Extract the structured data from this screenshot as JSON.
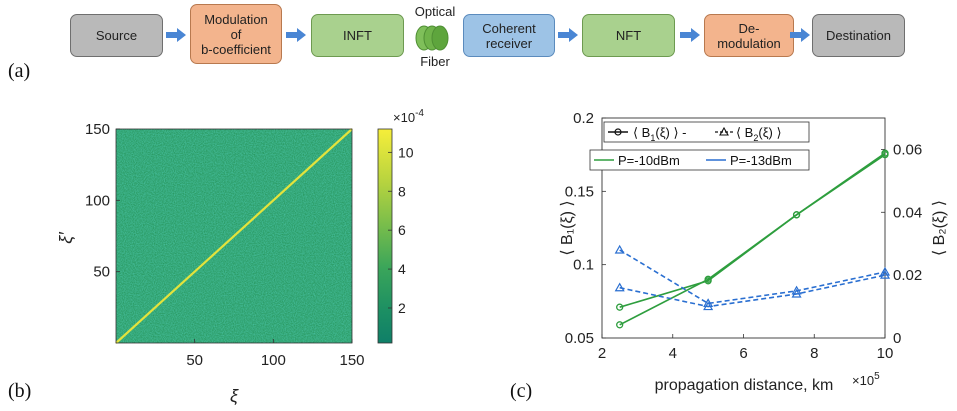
{
  "diagram": {
    "panel_label": "(a)",
    "blocks": [
      {
        "label": "Source",
        "color": "gray"
      },
      {
        "label": "Modulation\nof\nb-coefficient",
        "color": "orange"
      },
      {
        "label": "INFT",
        "color": "green"
      },
      {
        "label": "Coherent\nreceiver",
        "color": "blue"
      },
      {
        "label": "NFT",
        "color": "green"
      },
      {
        "label": "De-\nmodulation",
        "color": "orange"
      },
      {
        "label": "Destination",
        "color": "gray"
      }
    ],
    "fiber_label_top": "Optical",
    "fiber_label_bottom": "Fiber"
  },
  "heatmap": {
    "panel_label": "(b)",
    "x_ticks": [
      "50",
      "100",
      "150"
    ],
    "y_ticks": [
      "50",
      "100",
      "150"
    ],
    "xlabel": "ξ",
    "ylabel": "ξ′",
    "colorbar_ticks": [
      "2",
      "4",
      "6",
      "8",
      "10"
    ],
    "colorbar_exponent": "×10",
    "colorbar_exponent_power": "-4",
    "colors": {
      "low": "#138a6a",
      "mid": "#4aa657",
      "high": "#f3eb3c"
    }
  },
  "line_panel_label": "(c)",
  "chart_data": {
    "type": "line",
    "xlabel": "propagation distance, km",
    "x_exponent": "×10",
    "x_exponent_power": "5",
    "xlim": [
      2,
      10
    ],
    "x_ticks": [
      "2",
      "4",
      "6",
      "8",
      "10"
    ],
    "y_left_ticks": [
      "0.05",
      "0.1",
      "0.15",
      "0.2"
    ],
    "ylim_left": [
      0.05,
      0.2
    ],
    "y_right_ticks": [
      "0",
      "0.02",
      "0.04",
      "0.06"
    ],
    "ylim_right": [
      0,
      0.07
    ],
    "ylabel_left": "⟨ B₁(ξ) ⟩",
    "ylabel_right": "⟨ B₂(ξ) ⟩",
    "legend_markers": "⟨ B₁(ξ) ⟩ - ⟨ B₂(ξ) ⟩",
    "legend_markers_parts": {
      "b1": "⟨ B",
      "b1sub": "1",
      "b1end": "(ξ) ⟩ -",
      "b2": "⟨ B",
      "b2sub": "2",
      "b2end": "(ξ) ⟩"
    },
    "legend_power_1": "P=-10dBm",
    "legend_power_2": "P=-13dBm",
    "x": [
      2.5,
      5,
      7.5,
      10
    ],
    "series": [
      {
        "axis": "left",
        "style": "solid",
        "marker": "circle",
        "color": "#2e9e3e",
        "values": [
          0.071,
          0.089,
          0.134,
          0.176
        ]
      },
      {
        "axis": "left",
        "style": "solid",
        "marker": "circle",
        "color": "#2e9e3e",
        "values": [
          0.059,
          0.09,
          0.134,
          0.175
        ]
      },
      {
        "axis": "right",
        "style": "dashed",
        "marker": "triangle",
        "color": "#2a6fd1",
        "values": [
          0.028,
          0.011,
          0.015,
          0.021
        ]
      },
      {
        "axis": "right",
        "style": "dashed",
        "marker": "triangle",
        "color": "#2a6fd1",
        "values": [
          0.016,
          0.01,
          0.014,
          0.02
        ]
      }
    ]
  }
}
